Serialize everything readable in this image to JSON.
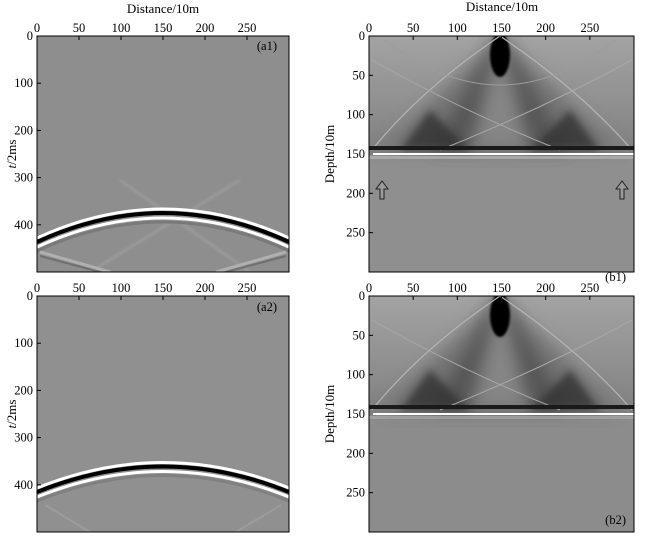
{
  "figure": {
    "top_xlabel_left": "Distance/10m",
    "top_xlabel_right": "Distance/10m",
    "x_ticks": [
      "0",
      "50",
      "100",
      "150",
      "200",
      "250"
    ],
    "a_ylabel_italic": "t",
    "a_ylabel_rest": "/2ms",
    "a_y_ticks": [
      "0",
      "100",
      "200",
      "300",
      "400"
    ],
    "b_ylabel": "Depth/10m",
    "b_y_ticks": [
      "0",
      "50",
      "100",
      "150",
      "200",
      "250"
    ],
    "panels": [
      {
        "id": "a1",
        "label": "(a1)"
      },
      {
        "id": "b1",
        "label": "(b1)"
      },
      {
        "id": "a2",
        "label": "(a2)"
      },
      {
        "id": "b2",
        "label": "(b2)"
      }
    ],
    "colors": {
      "background_gray": "#8f8f8f",
      "event_dark": "#000000",
      "event_light": "#ffffff"
    },
    "markers": [
      "arrow-up-icon",
      "arrow-up-icon"
    ]
  }
}
